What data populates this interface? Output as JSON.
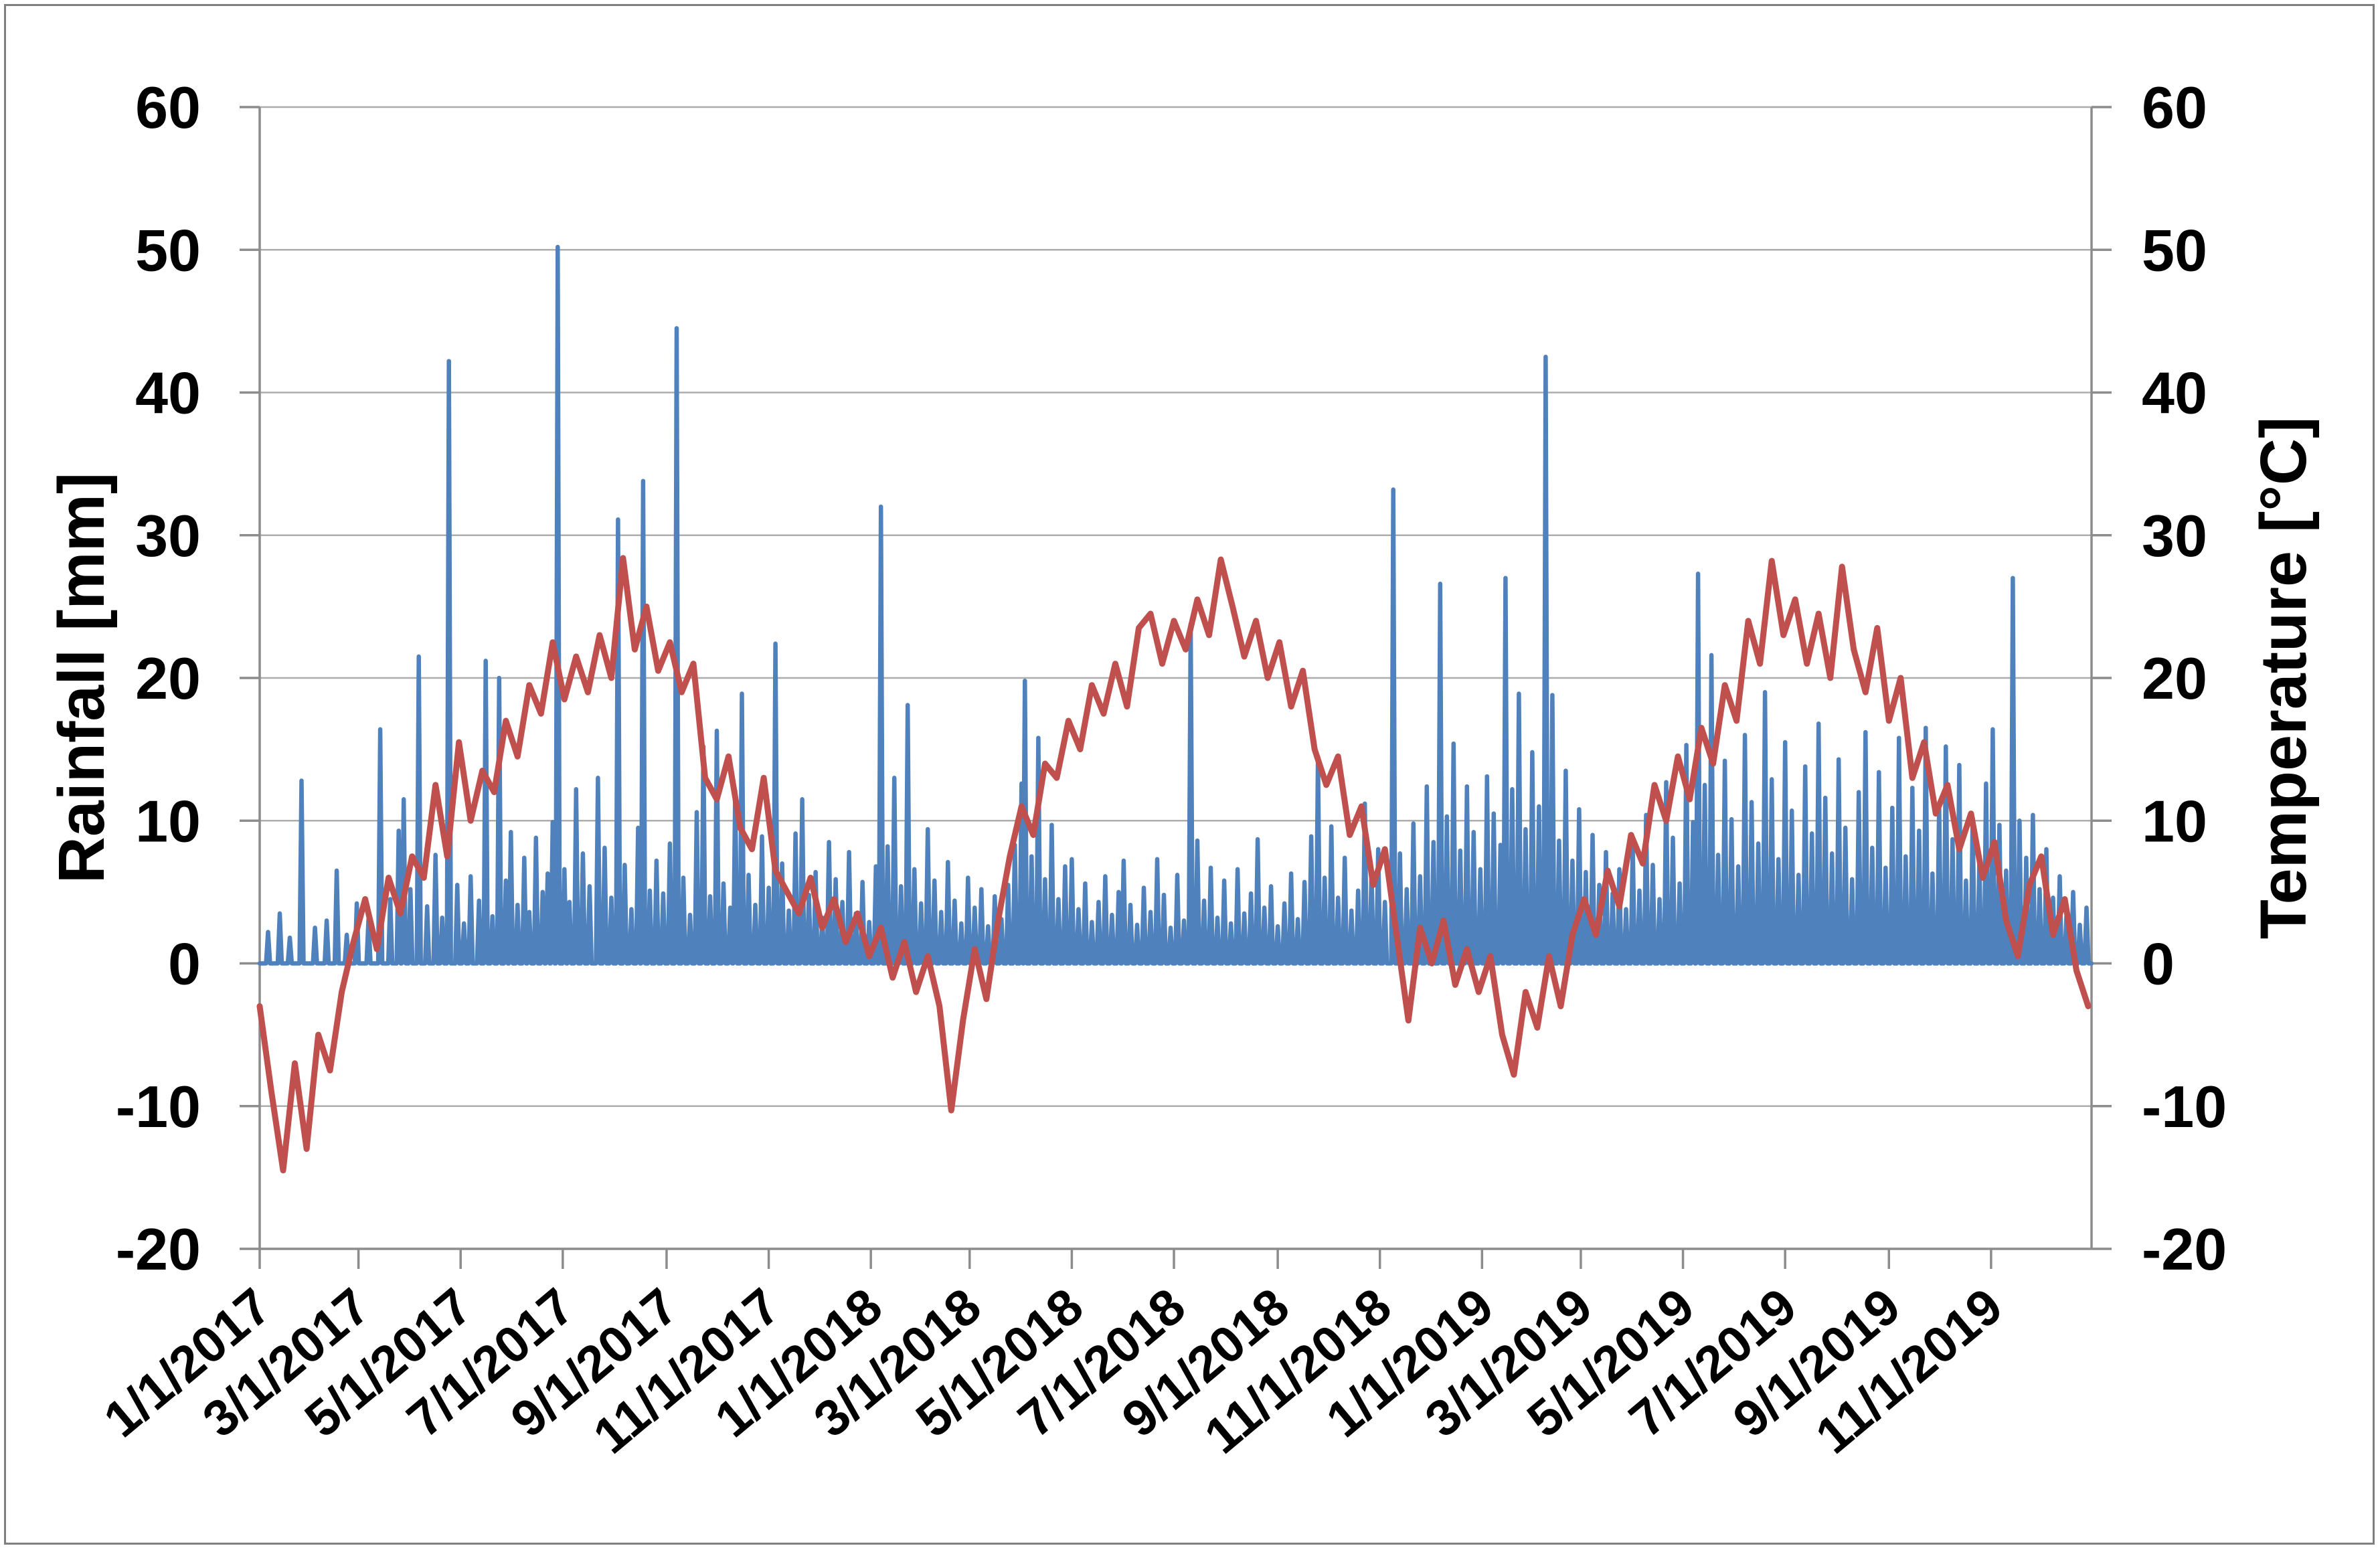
{
  "figure": {
    "background": "#FFFFFF",
    "border_color": "#7F7F7F",
    "grid_color": "#ADADAD",
    "axis_line_color": "#8C8C8C",
    "text_color": "#000000"
  },
  "chart_data": {
    "type": "line",
    "title": "",
    "left_ylabel": "Rainfall [mm]",
    "right_ylabel": "Temperature [°C]",
    "ylim": [
      -20,
      60
    ],
    "y_tick_interval": 10,
    "y_tick_labels": [
      "60",
      "50",
      "40",
      "30",
      "20",
      "10",
      "0",
      "-10",
      "-20"
    ],
    "grid": true,
    "legend_position": "none",
    "x_range": {
      "start": "1/1/2017",
      "days": 1095
    },
    "x_tick_labels": [
      "1/1/2017",
      "3/1/2017",
      "5/1/2017",
      "7/1/2017",
      "9/1/2017",
      "11/1/2017",
      "1/1/2018",
      "3/1/2018",
      "5/1/2018",
      "7/1/2018",
      "9/1/2018",
      "11/1/2018",
      "1/1/2019",
      "3/1/2019",
      "5/1/2019",
      "7/1/2019",
      "9/1/2019",
      "11/1/2019"
    ],
    "series": [
      {
        "name": "Rainfall",
        "unit": "mm",
        "axis": "left",
        "style": "spikes",
        "color": "#4F81BD",
        "baseline_value": 0,
        "events_day_mm": [
          [
            5,
            2.2
          ],
          [
            12,
            3.5
          ],
          [
            18,
            1.8
          ],
          [
            25,
            12.8
          ],
          [
            33,
            2.5
          ],
          [
            40,
            3
          ],
          [
            46,
            6.5
          ],
          [
            52,
            2
          ],
          [
            58,
            4.2
          ],
          [
            65,
            3.1
          ],
          [
            72,
            16.4
          ],
          [
            78,
            4.5
          ],
          [
            83,
            9.3
          ],
          [
            86,
            11.5
          ],
          [
            90,
            5.2
          ],
          [
            95,
            21.5
          ],
          [
            100,
            4
          ],
          [
            105,
            7.6
          ],
          [
            109,
            3.2
          ],
          [
            113,
            42.2
          ],
          [
            118,
            5.5
          ],
          [
            122,
            2.8
          ],
          [
            126,
            6.1
          ],
          [
            131,
            4.4
          ],
          [
            135,
            21.2
          ],
          [
            139,
            3.3
          ],
          [
            143,
            20
          ],
          [
            147,
            5.8
          ],
          [
            150,
            9.2
          ],
          [
            154,
            4.1
          ],
          [
            158,
            7.4
          ],
          [
            161,
            3.6
          ],
          [
            165,
            8.8
          ],
          [
            169,
            5
          ],
          [
            172,
            6.3
          ],
          [
            175,
            9.9
          ],
          [
            178,
            50.2
          ],
          [
            182,
            6.6
          ],
          [
            185,
            4.3
          ],
          [
            189,
            12.2
          ],
          [
            193,
            7.7
          ],
          [
            197,
            5.4
          ],
          [
            202,
            13
          ],
          [
            206,
            8.1
          ],
          [
            210,
            4.6
          ],
          [
            214,
            31.1
          ],
          [
            218,
            6.9
          ],
          [
            222,
            3.8
          ],
          [
            226,
            9.5
          ],
          [
            229,
            33.8
          ],
          [
            233,
            5.1
          ],
          [
            237,
            7.2
          ],
          [
            241,
            4.9
          ],
          [
            245,
            8.4
          ],
          [
            249,
            44.5
          ],
          [
            253,
            6
          ],
          [
            257,
            3.4
          ],
          [
            261,
            10.6
          ],
          [
            265,
            15.2
          ],
          [
            269,
            4.7
          ],
          [
            273,
            16.3
          ],
          [
            277,
            5.6
          ],
          [
            281,
            3.9
          ],
          [
            284,
            12.1
          ],
          [
            288,
            18.9
          ],
          [
            292,
            6.2
          ],
          [
            296,
            4.1
          ],
          [
            300,
            8.9
          ],
          [
            304,
            5.3
          ],
          [
            308,
            22.4
          ],
          [
            312,
            7
          ],
          [
            316,
            3.7
          ],
          [
            320,
            9.1
          ],
          [
            324,
            11.5
          ],
          [
            328,
            4.8
          ],
          [
            332,
            6.4
          ],
          [
            336,
            3.2
          ],
          [
            340,
            8.5
          ],
          [
            344,
            5.9
          ],
          [
            348,
            4.3
          ],
          [
            352,
            7.8
          ],
          [
            356,
            3.5
          ],
          [
            360,
            5.7
          ],
          [
            364,
            2.9
          ],
          [
            368,
            6.8
          ],
          [
            371,
            32
          ],
          [
            375,
            8.2
          ],
          [
            379,
            13
          ],
          [
            383,
            5.4
          ],
          [
            387,
            18.1
          ],
          [
            391,
            6.6
          ],
          [
            395,
            4.2
          ],
          [
            399,
            9.4
          ],
          [
            403,
            5.8
          ],
          [
            407,
            3.6
          ],
          [
            411,
            7.1
          ],
          [
            415,
            4.4
          ],
          [
            419,
            2.8
          ],
          [
            423,
            6
          ],
          [
            427,
            3.9
          ],
          [
            431,
            5.2
          ],
          [
            435,
            2.6
          ],
          [
            439,
            4.7
          ],
          [
            443,
            3.1
          ],
          [
            447,
            5.5
          ],
          [
            451,
            8.3
          ],
          [
            455,
            12.6
          ],
          [
            457,
            19.8
          ],
          [
            461,
            7.5
          ],
          [
            465,
            15.8
          ],
          [
            469,
            5.9
          ],
          [
            473,
            9.7
          ],
          [
            477,
            4.5
          ],
          [
            481,
            6.8
          ],
          [
            485,
            7.3
          ],
          [
            489,
            3.8
          ],
          [
            493,
            5.6
          ],
          [
            497,
            2.9
          ],
          [
            501,
            4.3
          ],
          [
            505,
            6.1
          ],
          [
            509,
            3.4
          ],
          [
            513,
            5
          ],
          [
            516,
            7.2
          ],
          [
            520,
            4.1
          ],
          [
            524,
            2.7
          ],
          [
            528,
            5.3
          ],
          [
            532,
            3.6
          ],
          [
            536,
            7.3
          ],
          [
            540,
            4.8
          ],
          [
            544,
            2.5
          ],
          [
            548,
            6.2
          ],
          [
            552,
            3
          ],
          [
            556,
            23.8
          ],
          [
            560,
            8.6
          ],
          [
            564,
            4.4
          ],
          [
            568,
            6.7
          ],
          [
            572,
            3.2
          ],
          [
            576,
            5.8
          ],
          [
            580,
            2.8
          ],
          [
            584,
            6.6
          ],
          [
            588,
            3.5
          ],
          [
            592,
            4.9
          ],
          [
            596,
            8.7
          ],
          [
            600,
            3.9
          ],
          [
            604,
            5.4
          ],
          [
            608,
            2.6
          ],
          [
            612,
            4.2
          ],
          [
            616,
            6.3
          ],
          [
            620,
            3.1
          ],
          [
            624,
            5.7
          ],
          [
            628,
            8.9
          ],
          [
            632,
            14.5
          ],
          [
            636,
            6
          ],
          [
            640,
            9.6
          ],
          [
            644,
            4.6
          ],
          [
            648,
            7.4
          ],
          [
            652,
            3.7
          ],
          [
            656,
            5.1
          ],
          [
            660,
            11.2
          ],
          [
            664,
            6.5
          ],
          [
            668,
            8
          ],
          [
            672,
            4.3
          ],
          [
            677,
            33.2
          ],
          [
            681,
            7.7
          ],
          [
            685,
            5.2
          ],
          [
            689,
            9.8
          ],
          [
            693,
            6.1
          ],
          [
            697,
            12.4
          ],
          [
            701,
            8.5
          ],
          [
            705,
            26.6
          ],
          [
            709,
            10.3
          ],
          [
            713,
            15.4
          ],
          [
            717,
            7.9
          ],
          [
            721,
            12.4
          ],
          [
            725,
            9.2
          ],
          [
            729,
            6.6
          ],
          [
            733,
            13.1
          ],
          [
            737,
            10.5
          ],
          [
            741,
            8.3
          ],
          [
            744,
            27
          ],
          [
            748,
            12.2
          ],
          [
            752,
            18.9
          ],
          [
            756,
            9.4
          ],
          [
            760,
            14.8
          ],
          [
            764,
            11
          ],
          [
            768,
            42.5
          ],
          [
            772,
            18.8
          ],
          [
            776,
            8.6
          ],
          [
            780,
            13.5
          ],
          [
            784,
            7.2
          ],
          [
            788,
            10.8
          ],
          [
            792,
            6.4
          ],
          [
            796,
            9
          ],
          [
            800,
            5.5
          ],
          [
            804,
            7.8
          ],
          [
            808,
            4.9
          ],
          [
            812,
            6.6
          ],
          [
            816,
            3.8
          ],
          [
            820,
            8.2
          ],
          [
            824,
            5.1
          ],
          [
            828,
            10.4
          ],
          [
            832,
            6.9
          ],
          [
            836,
            4.5
          ],
          [
            840,
            12.7
          ],
          [
            844,
            8.8
          ],
          [
            848,
            5.6
          ],
          [
            852,
            15.3
          ],
          [
            856,
            9.9
          ],
          [
            859,
            27.3
          ],
          [
            863,
            12.5
          ],
          [
            867,
            21.6
          ],
          [
            871,
            7.6
          ],
          [
            875,
            14.2
          ],
          [
            879,
            10.1
          ],
          [
            883,
            6.8
          ],
          [
            887,
            16
          ],
          [
            891,
            11.3
          ],
          [
            895,
            8.4
          ],
          [
            899,
            19
          ],
          [
            903,
            12.9
          ],
          [
            907,
            7.3
          ],
          [
            911,
            15.5
          ],
          [
            915,
            10.7
          ],
          [
            919,
            6.2
          ],
          [
            923,
            13.8
          ],
          [
            927,
            9.1
          ],
          [
            931,
            16.8
          ],
          [
            935,
            11.6
          ],
          [
            939,
            7.7
          ],
          [
            943,
            14.3
          ],
          [
            947,
            9.5
          ],
          [
            951,
            5.9
          ],
          [
            955,
            12
          ],
          [
            959,
            16.2
          ],
          [
            963,
            8.1
          ],
          [
            967,
            13.4
          ],
          [
            971,
            6.7
          ],
          [
            975,
            10.9
          ],
          [
            979,
            15.8
          ],
          [
            983,
            7.5
          ],
          [
            987,
            12.3
          ],
          [
            991,
            9.3
          ],
          [
            995,
            16.5
          ],
          [
            999,
            6.3
          ],
          [
            1003,
            11.1
          ],
          [
            1007,
            15.2
          ],
          [
            1011,
            8.7
          ],
          [
            1015,
            13.9
          ],
          [
            1019,
            5.8
          ],
          [
            1023,
            10.2
          ],
          [
            1027,
            7.1
          ],
          [
            1031,
            12.6
          ],
          [
            1035,
            16.4
          ],
          [
            1039,
            9.7
          ],
          [
            1043,
            6.5
          ],
          [
            1047,
            27
          ],
          [
            1051,
            10
          ],
          [
            1055,
            7.4
          ],
          [
            1059,
            10.4
          ],
          [
            1063,
            5.2
          ],
          [
            1067,
            8
          ],
          [
            1071,
            4.6
          ],
          [
            1075,
            6.1
          ],
          [
            1079,
            3.3
          ],
          [
            1083,
            5
          ],
          [
            1087,
            2.7
          ],
          [
            1091,
            3.9
          ]
        ]
      },
      {
        "name": "Temperature",
        "unit": "°C",
        "axis": "right",
        "style": "line",
        "color": "#C0504D",
        "week_length_days": 7,
        "weekly_values": [
          -3,
          -9,
          -14.5,
          -7,
          -13,
          -5,
          -7.5,
          -2,
          1.5,
          4.5,
          1,
          6,
          3.5,
          7.5,
          6,
          12.5,
          7.5,
          15.5,
          10,
          13.5,
          12,
          17,
          14.5,
          19.5,
          17.5,
          22.5,
          18.5,
          21.5,
          19,
          23,
          20,
          28.4,
          22,
          25,
          20.5,
          22.5,
          19,
          21,
          13,
          11.5,
          14.5,
          9.5,
          8,
          13,
          6.5,
          5,
          3.5,
          6,
          2.5,
          4.5,
          1.5,
          3.5,
          0.5,
          2.5,
          -1,
          1.5,
          -2,
          0.5,
          -3,
          -10.3,
          -4,
          1,
          -2.5,
          3,
          7.5,
          11,
          9,
          14,
          13,
          17,
          15,
          19.5,
          17.5,
          21,
          18,
          23.5,
          24.5,
          21,
          24,
          22,
          25.5,
          23,
          28.3,
          25,
          21.5,
          24,
          20,
          22.5,
          18,
          20.5,
          15,
          12.5,
          14.5,
          9,
          11,
          5.5,
          8,
          2,
          -4,
          2.5,
          0,
          3,
          -1.5,
          1,
          -2,
          0.5,
          -5,
          -7.8,
          -2,
          -4.5,
          0.5,
          -3,
          2,
          4.5,
          2,
          6.5,
          4,
          9,
          7,
          12.5,
          10,
          14.5,
          11.5,
          16.5,
          14,
          19.5,
          17,
          24,
          21,
          28.2,
          23,
          25.5,
          21,
          24.5,
          20,
          27.8,
          22,
          19,
          23.5,
          17,
          20,
          13,
          15.5,
          10.5,
          12.5,
          8,
          10.5,
          6,
          8.5,
          3,
          0.5,
          5.5,
          7.5,
          2,
          4.5,
          -0.5,
          -3
        ]
      }
    ]
  }
}
